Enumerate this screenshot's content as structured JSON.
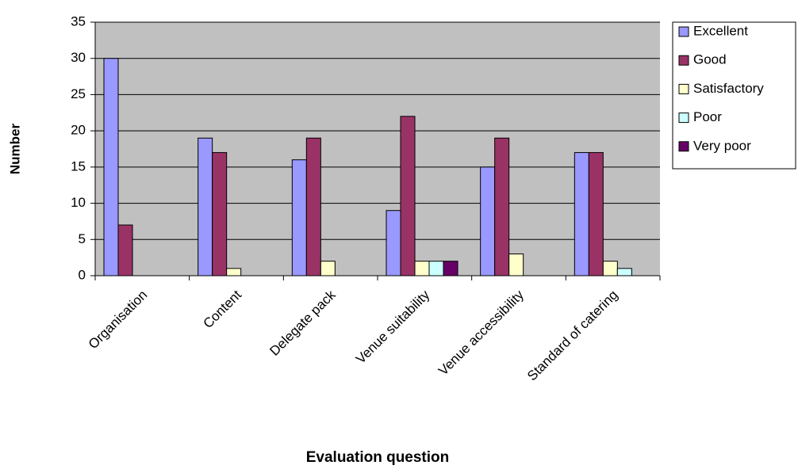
{
  "chart_data": {
    "type": "bar",
    "x_label": "Evaluation question",
    "y_label": "Number",
    "categories": [
      "Organisation",
      "Content",
      "Delegate pack",
      "Venue suitability",
      "Venue accessibility",
      "Standard of  catering"
    ],
    "series": [
      {
        "name": "Excellent",
        "color": "#9999ff",
        "values": [
          30,
          19,
          16,
          9,
          15,
          17
        ]
      },
      {
        "name": "Good",
        "color": "#993366",
        "values": [
          7,
          17,
          19,
          22,
          19,
          17
        ]
      },
      {
        "name": "Satisfactory",
        "color": "#ffffcc",
        "values": [
          0,
          1,
          2,
          2,
          3,
          2
        ]
      },
      {
        "name": "Poor",
        "color": "#ccffff",
        "values": [
          0,
          0,
          0,
          2,
          0,
          1
        ]
      },
      {
        "name": "Very poor",
        "color": "#660066",
        "values": [
          0,
          0,
          0,
          2,
          0,
          0
        ]
      }
    ],
    "ylim": [
      0,
      35
    ],
    "yticks": [
      0,
      5,
      10,
      15,
      20,
      25,
      30,
      35
    ],
    "grid": true,
    "legend": "right"
  }
}
